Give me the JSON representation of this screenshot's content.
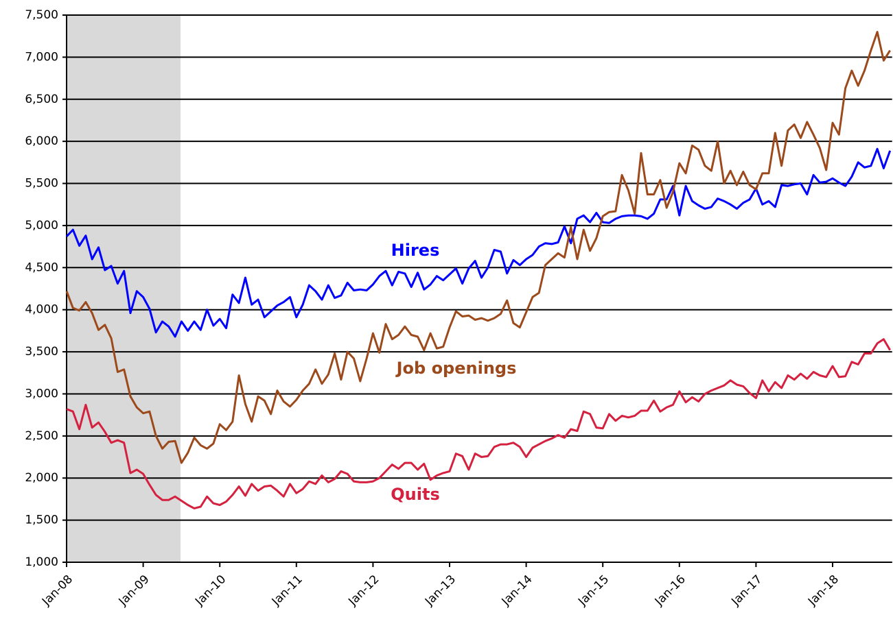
{
  "chart_data": {
    "type": "line",
    "categories": [
      "Jan-08",
      null,
      null,
      null,
      null,
      null,
      null,
      null,
      null,
      null,
      null,
      null,
      "Jan-09",
      null,
      null,
      null,
      null,
      null,
      null,
      null,
      null,
      null,
      null,
      null,
      "Jan-10",
      null,
      null,
      null,
      null,
      null,
      null,
      null,
      null,
      null,
      null,
      null,
      "Jan-11",
      null,
      null,
      null,
      null,
      null,
      null,
      null,
      null,
      null,
      null,
      null,
      "Jan-12",
      null,
      null,
      null,
      null,
      null,
      null,
      null,
      null,
      null,
      null,
      null,
      "Jan-13",
      null,
      null,
      null,
      null,
      null,
      null,
      null,
      null,
      null,
      null,
      null,
      "Jan-14",
      null,
      null,
      null,
      null,
      null,
      null,
      null,
      null,
      null,
      null,
      null,
      "Jan-15",
      null,
      null,
      null,
      null,
      null,
      null,
      null,
      null,
      null,
      null,
      null,
      "Jan-16",
      null,
      null,
      null,
      null,
      null,
      null,
      null,
      null,
      null,
      null,
      null,
      "Jan-17",
      null,
      null,
      null,
      null,
      null,
      null,
      null,
      null,
      null,
      null,
      null,
      "Jan-18",
      null,
      null,
      null,
      null,
      null,
      null,
      null,
      null,
      null
    ],
    "series": [
      {
        "name": "Hires",
        "color": "#0000ff",
        "values": [
          4870,
          4950,
          4760,
          4880,
          4600,
          4740,
          4470,
          4520,
          4310,
          4460,
          3960,
          4220,
          4150,
          4010,
          3730,
          3860,
          3800,
          3680,
          3860,
          3750,
          3860,
          3760,
          4000,
          3810,
          3890,
          3780,
          4180,
          4080,
          4380,
          4060,
          4120,
          3910,
          3980,
          4050,
          4090,
          4150,
          3910,
          4060,
          4290,
          4220,
          4120,
          4290,
          4140,
          4170,
          4320,
          4230,
          4240,
          4230,
          4300,
          4400,
          4460,
          4290,
          4450,
          4430,
          4270,
          4440,
          4240,
          4300,
          4400,
          4350,
          4420,
          4490,
          4310,
          4490,
          4580,
          4380,
          4500,
          4710,
          4690,
          4430,
          4590,
          4530,
          4600,
          4650,
          4750,
          4790,
          4780,
          4800,
          4990,
          4790,
          5080,
          5120,
          5040,
          5150,
          5040,
          5030,
          5080,
          5110,
          5120,
          5120,
          5110,
          5080,
          5140,
          5310,
          5310,
          5470,
          5120,
          5470,
          5290,
          5240,
          5200,
          5220,
          5320,
          5290,
          5250,
          5200,
          5270,
          5310,
          5440,
          5250,
          5290,
          5220,
          5480,
          5470,
          5490,
          5500,
          5370,
          5600,
          5510,
          5520,
          5560,
          5510,
          5470,
          5580,
          5750,
          5690,
          5710,
          5910,
          5680,
          5890
        ]
      },
      {
        "name": "Job openings",
        "color": "#9c4a1c",
        "values": [
          4220,
          4020,
          3990,
          4090,
          3960,
          3760,
          3820,
          3660,
          3260,
          3290,
          2970,
          2840,
          2770,
          2790,
          2500,
          2350,
          2430,
          2440,
          2180,
          2300,
          2480,
          2390,
          2350,
          2410,
          2640,
          2570,
          2670,
          3220,
          2880,
          2670,
          2970,
          2920,
          2760,
          3040,
          2910,
          2850,
          2930,
          3040,
          3120,
          3290,
          3120,
          3230,
          3480,
          3170,
          3500,
          3420,
          3150,
          3420,
          3720,
          3490,
          3830,
          3650,
          3700,
          3800,
          3700,
          3680,
          3520,
          3720,
          3540,
          3560,
          3790,
          3980,
          3920,
          3930,
          3880,
          3900,
          3870,
          3900,
          3950,
          4110,
          3840,
          3790,
          3970,
          4150,
          4200,
          4530,
          4600,
          4670,
          4620,
          4980,
          4600,
          4950,
          4700,
          4850,
          5110,
          5160,
          5170,
          5600,
          5420,
          5140,
          5860,
          5370,
          5370,
          5540,
          5210,
          5400,
          5740,
          5620,
          5950,
          5900,
          5710,
          5650,
          6000,
          5500,
          5650,
          5480,
          5640,
          5480,
          5430,
          5620,
          5620,
          6100,
          5710,
          6130,
          6200,
          6040,
          6230,
          6080,
          5920,
          5660,
          6220,
          6080,
          6630,
          6840,
          6660,
          6840,
          7080,
          7300,
          6960,
          7080
        ]
      },
      {
        "name": "Quits",
        "color": "#d4213f",
        "values": [
          2820,
          2790,
          2580,
          2870,
          2600,
          2660,
          2550,
          2420,
          2450,
          2420,
          2060,
          2100,
          2050,
          1920,
          1800,
          1740,
          1740,
          1780,
          1730,
          1680,
          1640,
          1660,
          1780,
          1700,
          1680,
          1720,
          1800,
          1900,
          1790,
          1930,
          1850,
          1900,
          1910,
          1850,
          1780,
          1930,
          1820,
          1870,
          1960,
          1930,
          2030,
          1950,
          1990,
          2080,
          2050,
          1960,
          1950,
          1950,
          1960,
          2000,
          2080,
          2160,
          2110,
          2180,
          2180,
          2100,
          2170,
          1980,
          2030,
          2060,
          2080,
          2290,
          2260,
          2100,
          2290,
          2250,
          2260,
          2370,
          2400,
          2400,
          2420,
          2370,
          2250,
          2360,
          2400,
          2440,
          2470,
          2510,
          2480,
          2580,
          2560,
          2790,
          2760,
          2600,
          2590,
          2760,
          2680,
          2740,
          2720,
          2740,
          2800,
          2800,
          2920,
          2790,
          2840,
          2870,
          3030,
          2900,
          2960,
          2910,
          3000,
          3040,
          3070,
          3100,
          3160,
          3110,
          3090,
          3010,
          2950,
          3160,
          3030,
          3140,
          3070,
          3220,
          3170,
          3240,
          3180,
          3260,
          3220,
          3200,
          3330,
          3200,
          3210,
          3380,
          3350,
          3480,
          3480,
          3600,
          3650,
          3520
        ]
      }
    ],
    "ylim": [
      1000,
      7500
    ],
    "yticks": [
      {
        "value": 1000,
        "label": "1,000"
      },
      {
        "value": 1500,
        "label": "1,500"
      },
      {
        "value": 2000,
        "label": "2,000"
      },
      {
        "value": 2500,
        "label": "2,500"
      },
      {
        "value": 3000,
        "label": "3,000"
      },
      {
        "value": 3500,
        "label": "3,500"
      },
      {
        "value": 4000,
        "label": "4,000"
      },
      {
        "value": 4500,
        "label": "4,500"
      },
      {
        "value": 5000,
        "label": "5,000"
      },
      {
        "value": 5500,
        "label": "5,500"
      },
      {
        "value": 6000,
        "label": "6,000"
      },
      {
        "value": 6500,
        "label": "6,500"
      },
      {
        "value": 7000,
        "label": "7,000"
      },
      {
        "value": 7500,
        "label": "7,500"
      }
    ],
    "grid": true
  }
}
